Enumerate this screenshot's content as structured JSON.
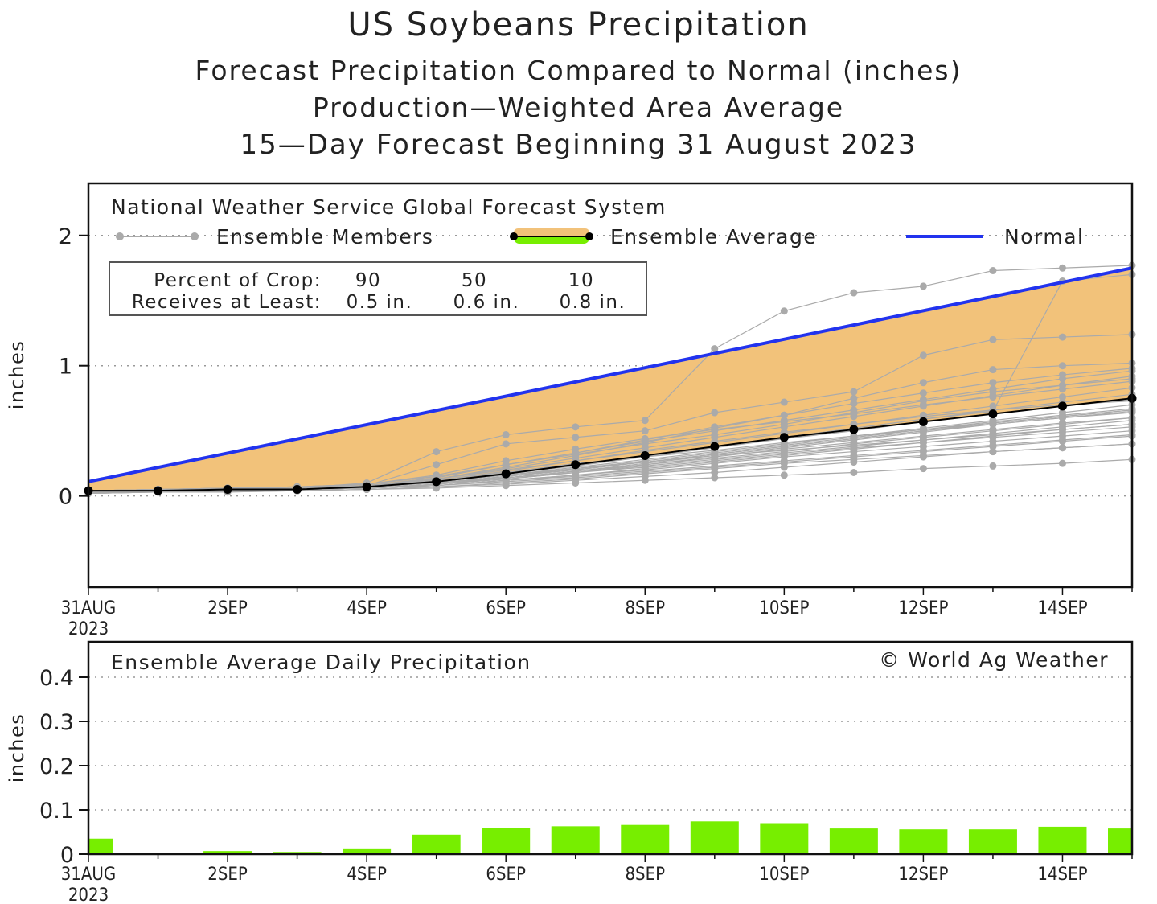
{
  "title": "US Soybeans Precipitation",
  "subtitle_1": "Forecast Precipitation Compared to Normal (inches)",
  "subtitle_2": "Production—Weighted Area Average",
  "subtitle_3": "15—Day Forecast Beginning 31 August 2023",
  "top_panel": {
    "model_label": "National Weather Service Global Forecast System",
    "legend": {
      "members": "Ensemble Members",
      "average": "Ensemble Average",
      "normal": "Normal"
    },
    "crop_box": {
      "row1_label": "Percent of Crop:",
      "row2_label": "Receives at Least:",
      "percents": [
        "90",
        "50",
        "10"
      ],
      "amounts": [
        "0.5 in.",
        "0.6 in.",
        "0.8 in."
      ]
    },
    "ylabel": "inches"
  },
  "bottom_panel": {
    "label": "Ensemble Average Daily Precipitation",
    "credit": "© World Ag Weather",
    "ylabel": "inches"
  },
  "colors": {
    "normal": "#2233ee",
    "fill": "#f2c27a",
    "member": "#aaaaaa",
    "average": "#000000",
    "bar": "#77ee00"
  },
  "chart_data": [
    {
      "type": "line",
      "title": "Forecast Precipitation Compared to Normal (inches)",
      "ylabel": "inches",
      "ylim": [
        -0.7,
        2.4
      ],
      "yticks": [
        0,
        1,
        2
      ],
      "x_days": [
        0,
        1,
        2,
        3,
        4,
        5,
        6,
        7,
        8,
        9,
        10,
        11,
        12,
        13,
        14,
        15
      ],
      "x_tick_days": [
        0,
        2,
        4,
        6,
        8,
        10,
        12,
        14
      ],
      "x_tick_labels": [
        "31AUG",
        "2SEP",
        "4SEP",
        "6SEP",
        "8SEP",
        "10SEP",
        "12SEP",
        "14SEP"
      ],
      "x_year_label": "2023",
      "normal": {
        "name": "Normal",
        "x": [
          0,
          15
        ],
        "values": [
          0.11,
          1.75
        ]
      },
      "series": [
        {
          "name": "Ensemble Average",
          "values": [
            0.04,
            0.04,
            0.05,
            0.05,
            0.07,
            0.11,
            0.17,
            0.24,
            0.31,
            0.38,
            0.45,
            0.51,
            0.57,
            0.63,
            0.69,
            0.75
          ]
        },
        {
          "name": "Ensemble Members",
          "members": [
            [
              0.02,
              0.03,
              0.03,
              0.04,
              0.05,
              0.07,
              0.1,
              0.13,
              0.17,
              0.21,
              0.25,
              0.28,
              0.31,
              0.34,
              0.37,
              0.4
            ],
            [
              0.03,
              0.04,
              0.04,
              0.05,
              0.06,
              0.08,
              0.12,
              0.16,
              0.2,
              0.25,
              0.3,
              0.34,
              0.38,
              0.42,
              0.46,
              0.5
            ],
            [
              0.03,
              0.04,
              0.05,
              0.06,
              0.08,
              0.13,
              0.2,
              0.27,
              0.34,
              0.41,
              0.48,
              0.55,
              0.62,
              0.69,
              0.76,
              0.83
            ],
            [
              0.04,
              0.05,
              0.05,
              0.06,
              0.07,
              0.1,
              0.14,
              0.18,
              0.22,
              0.27,
              0.32,
              0.37,
              0.41,
              0.45,
              0.49,
              0.53
            ],
            [
              0.02,
              0.03,
              0.04,
              0.04,
              0.05,
              0.06,
              0.08,
              0.1,
              0.12,
              0.14,
              0.16,
              0.18,
              0.21,
              0.23,
              0.25,
              0.28
            ],
            [
              0.04,
              0.05,
              0.06,
              0.07,
              0.09,
              0.15,
              0.24,
              0.33,
              0.43,
              0.53,
              0.62,
              0.71,
              0.79,
              0.87,
              0.93,
              0.98
            ],
            [
              0.03,
              0.04,
              0.04,
              0.05,
              0.06,
              0.09,
              0.13,
              0.18,
              0.24,
              0.3,
              0.36,
              0.41,
              0.46,
              0.51,
              0.56,
              0.6
            ],
            [
              0.03,
              0.03,
              0.04,
              0.05,
              0.07,
              0.12,
              0.18,
              0.25,
              0.3,
              0.35,
              0.41,
              0.46,
              0.51,
              0.56,
              0.61,
              0.66
            ],
            [
              0.04,
              0.05,
              0.05,
              0.06,
              0.1,
              0.34,
              0.47,
              0.53,
              0.58,
              1.13,
              1.42,
              1.56,
              1.61,
              1.73,
              1.75,
              1.77
            ],
            [
              0.03,
              0.04,
              0.05,
              0.06,
              0.08,
              0.11,
              0.16,
              0.21,
              0.26,
              0.31,
              0.35,
              0.39,
              0.43,
              0.47,
              0.51,
              0.55
            ],
            [
              0.03,
              0.04,
              0.04,
              0.05,
              0.06,
              0.08,
              0.11,
              0.14,
              0.18,
              0.22,
              0.26,
              0.3,
              0.34,
              0.38,
              0.42,
              0.46
            ],
            [
              0.04,
              0.05,
              0.06,
              0.07,
              0.09,
              0.16,
              0.27,
              0.36,
              0.44,
              0.51,
              0.57,
              0.63,
              0.7,
              0.76,
              0.82,
              0.88
            ],
            [
              0.03,
              0.04,
              0.05,
              0.06,
              0.08,
              0.13,
              0.22,
              0.31,
              0.41,
              0.52,
              0.62,
              0.75,
              0.87,
              0.97,
              1.0,
              1.02
            ],
            [
              0.04,
              0.05,
              0.06,
              0.07,
              0.08,
              0.12,
              0.19,
              0.27,
              0.35,
              0.42,
              0.49,
              0.55,
              0.61,
              0.66,
              0.7,
              0.73
            ],
            [
              0.03,
              0.04,
              0.04,
              0.05,
              0.07,
              0.1,
              0.15,
              0.2,
              0.26,
              0.32,
              0.38,
              0.44,
              0.5,
              0.55,
              0.6,
              0.64
            ],
            [
              0.02,
              0.03,
              0.04,
              0.05,
              0.06,
              0.08,
              0.12,
              0.15,
              0.19,
              0.23,
              0.27,
              0.31,
              0.35,
              0.39,
              0.43,
              0.47
            ],
            [
              0.04,
              0.05,
              0.05,
              0.06,
              0.08,
              0.14,
              0.24,
              0.32,
              0.4,
              0.47,
              0.55,
              0.64,
              0.73,
              0.8,
              0.85,
              0.9
            ],
            [
              0.03,
              0.04,
              0.05,
              0.06,
              0.08,
              0.24,
              0.4,
              0.45,
              0.5,
              0.64,
              0.72,
              0.8,
              1.08,
              1.2,
              1.22,
              1.24
            ],
            [
              0.03,
              0.04,
              0.05,
              0.05,
              0.07,
              0.11,
              0.17,
              0.23,
              0.3,
              0.37,
              0.44,
              0.5,
              0.57,
              0.63,
              0.69,
              0.74
            ],
            [
              0.04,
              0.05,
              0.05,
              0.06,
              0.07,
              0.11,
              0.16,
              0.22,
              0.28,
              0.34,
              0.4,
              0.46,
              0.52,
              0.58,
              0.64,
              0.7
            ],
            [
              0.03,
              0.04,
              0.05,
              0.05,
              0.06,
              0.09,
              0.14,
              0.19,
              0.25,
              0.31,
              0.37,
              0.43,
              0.49,
              0.55,
              0.6,
              0.65
            ],
            [
              0.03,
              0.04,
              0.04,
              0.05,
              0.07,
              0.1,
              0.15,
              0.21,
              0.27,
              0.33,
              0.39,
              0.45,
              0.51,
              0.57,
              0.62,
              0.67
            ],
            [
              0.03,
              0.03,
              0.04,
              0.05,
              0.06,
              0.08,
              0.12,
              0.16,
              0.21,
              0.26,
              0.31,
              0.36,
              0.41,
              0.46,
              0.51,
              0.55
            ],
            [
              0.04,
              0.05,
              0.06,
              0.07,
              0.09,
              0.15,
              0.24,
              0.33,
              0.42,
              0.5,
              0.58,
              0.66,
              0.74,
              0.82,
              0.9,
              0.96
            ],
            [
              0.03,
              0.04,
              0.05,
              0.06,
              0.07,
              0.11,
              0.17,
              0.24,
              0.31,
              0.38,
              0.45,
              0.52,
              0.59,
              0.65,
              1.65,
              1.7
            ],
            [
              0.02,
              0.03,
              0.03,
              0.04,
              0.05,
              0.07,
              0.09,
              0.12,
              0.15,
              0.18,
              0.22,
              0.26,
              0.3,
              0.34,
              0.37,
              0.4
            ],
            [
              0.04,
              0.05,
              0.05,
              0.06,
              0.08,
              0.12,
              0.18,
              0.24,
              0.31,
              0.38,
              0.45,
              0.52,
              0.59,
              0.66,
              0.72,
              0.78
            ],
            [
              0.03,
              0.04,
              0.05,
              0.06,
              0.07,
              0.1,
              0.15,
              0.2,
              0.26,
              0.32,
              0.38,
              0.44,
              0.5,
              0.56,
              0.61,
              0.66
            ],
            [
              0.03,
              0.04,
              0.04,
              0.05,
              0.06,
              0.09,
              0.13,
              0.18,
              0.23,
              0.28,
              0.33,
              0.38,
              0.43,
              0.48,
              0.53,
              0.58
            ],
            [
              0.04,
              0.05,
              0.06,
              0.06,
              0.08,
              0.13,
              0.21,
              0.29,
              0.37,
              0.45,
              0.53,
              0.61,
              0.69,
              0.77,
              0.85,
              0.92
            ],
            [
              0.03,
              0.04,
              0.05,
              0.05,
              0.07,
              0.1,
              0.14,
              0.19,
              0.24,
              0.29,
              0.34,
              0.4,
              0.45,
              0.5,
              0.55,
              0.6
            ]
          ]
        }
      ]
    },
    {
      "type": "bar",
      "title": "Ensemble Average Daily Precipitation",
      "ylabel": "inches",
      "ylim": [
        0,
        0.48
      ],
      "yticks": [
        0,
        0.1,
        0.2,
        0.3,
        0.4
      ],
      "ytick_labels": [
        "0",
        "0.1",
        "0.2",
        "0.3",
        "0.4"
      ],
      "x_tick_labels": [
        "31AUG",
        "2SEP",
        "4SEP",
        "6SEP",
        "8SEP",
        "10SEP",
        "12SEP",
        "14SEP"
      ],
      "x_year_label": "2023",
      "x_days": [
        0,
        1,
        2,
        3,
        4,
        5,
        6,
        7,
        8,
        9,
        10,
        11,
        12,
        13,
        14,
        15
      ],
      "values": [
        0.035,
        0.003,
        0.007,
        0.005,
        0.013,
        0.044,
        0.059,
        0.063,
        0.066,
        0.074,
        0.07,
        0.058,
        0.056,
        0.056,
        0.062,
        0.058
      ]
    }
  ]
}
